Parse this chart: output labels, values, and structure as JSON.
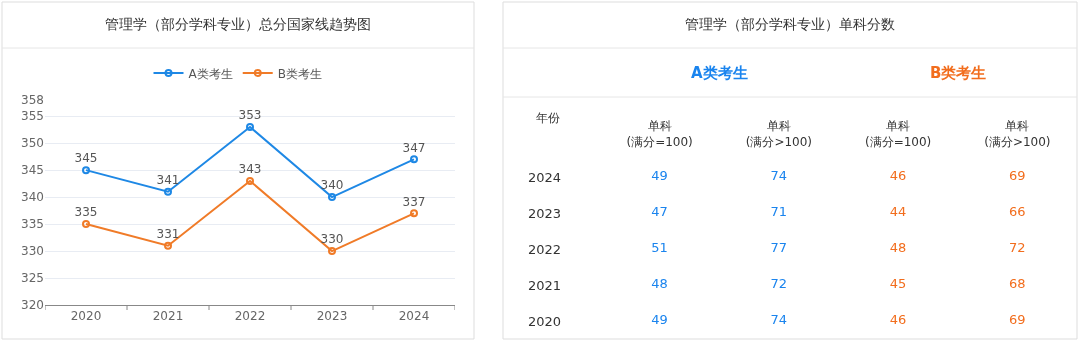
{
  "chart_data": [
    {
      "type": "line",
      "title": "管理学（部分学科专业）总分国家线趋势图",
      "categories": [
        "2020",
        "2021",
        "2022",
        "2023",
        "2024"
      ],
      "series": [
        {
          "name": "A类考生",
          "color": "#1e88e5",
          "values": [
            345,
            341,
            353,
            340,
            347
          ]
        },
        {
          "name": "B类考生",
          "color": "#f07b28",
          "values": [
            335,
            331,
            343,
            330,
            337
          ]
        }
      ],
      "ylim": [
        320,
        358
      ],
      "yticks": [
        320,
        325,
        330,
        335,
        340,
        345,
        350,
        355,
        358
      ],
      "grid": "y",
      "legend": "top",
      "marker": "circle",
      "line_style": "solid",
      "data_labels": true
    },
    {
      "type": "heatmap",
      "title": "管理学（部分学科专业）单科分数",
      "ylabel": "年份",
      "annotations": [
        "A类考生",
        "B类考生"
      ],
      "colors": [
        "#1a84ee",
        "#1a84ee",
        "#f26d1d",
        "#f26d1d"
      ],
      "categories": [
        "单科\n(满分=100)",
        "单科\n(满分>100)",
        "单科\n(满分=100)",
        "单科\n(满分>100)"
      ],
      "y_categories": [
        "2024",
        "2023",
        "2022",
        "2021",
        "2020"
      ],
      "cells": [
        [
          49,
          74,
          46,
          69
        ],
        [
          47,
          71,
          44,
          66
        ],
        [
          51,
          77,
          48,
          72
        ],
        [
          48,
          72,
          45,
          68
        ],
        [
          49,
          74,
          46,
          69
        ]
      ],
      "data_labels": true
    }
  ]
}
